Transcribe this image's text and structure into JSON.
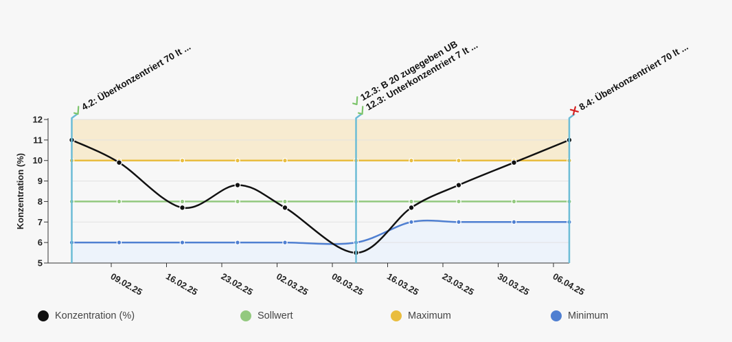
{
  "chart_data": {
    "type": "line",
    "ylabel": "Konzentration (%)",
    "xlabel": "",
    "ylim": [
      5,
      12
    ],
    "yticks": [
      "5",
      "6",
      "7",
      "8",
      "9",
      "10",
      "11",
      "12"
    ],
    "x_start": "2025-02-01",
    "x_end": "2025-04-06",
    "xticks": [
      {
        "date": "2025-02-09",
        "label": "09.02.25"
      },
      {
        "date": "2025-02-16",
        "label": "16.02.25"
      },
      {
        "date": "2025-02-23",
        "label": "23.02.25"
      },
      {
        "date": "2025-03-02",
        "label": "02.03.25"
      },
      {
        "date": "2025-03-09",
        "label": "09.03.25"
      },
      {
        "date": "2025-03-16",
        "label": "16.03.25"
      },
      {
        "date": "2025-03-23",
        "label": "23.03.25"
      },
      {
        "date": "2025-03-30",
        "label": "30.03.25"
      },
      {
        "date": "2025-04-06",
        "label": "06.04.25"
      }
    ],
    "series": [
      {
        "name": "Konzentration (%)",
        "color": "#111111",
        "points": [
          {
            "x": "2025-02-04",
            "y": 11
          },
          {
            "x": "2025-02-10",
            "y": 9.9
          },
          {
            "x": "2025-02-18",
            "y": 7.7
          },
          {
            "x": "2025-02-25",
            "y": 8.8
          },
          {
            "x": "2025-03-03",
            "y": 7.7
          },
          {
            "x": "2025-03-12",
            "y": 5.5
          },
          {
            "x": "2025-03-19",
            "y": 7.7
          },
          {
            "x": "2025-03-25",
            "y": 8.8
          },
          {
            "x": "2025-04-01",
            "y": 9.9
          },
          {
            "x": "2025-04-08",
            "y": 11
          }
        ]
      },
      {
        "name": "Sollwert",
        "color": "#93c97f",
        "points": [
          {
            "x": "2025-02-04",
            "y": 8
          },
          {
            "x": "2025-02-10",
            "y": 8
          },
          {
            "x": "2025-02-18",
            "y": 8
          },
          {
            "x": "2025-02-25",
            "y": 8
          },
          {
            "x": "2025-03-03",
            "y": 8
          },
          {
            "x": "2025-03-12",
            "y": 8
          },
          {
            "x": "2025-03-19",
            "y": 8
          },
          {
            "x": "2025-03-25",
            "y": 8
          },
          {
            "x": "2025-04-01",
            "y": 8
          },
          {
            "x": "2025-04-08",
            "y": 8
          }
        ]
      },
      {
        "name": "Maximum",
        "color": "#e9bd3f",
        "points": [
          {
            "x": "2025-02-04",
            "y": 10
          },
          {
            "x": "2025-02-10",
            "y": 10
          },
          {
            "x": "2025-02-18",
            "y": 10
          },
          {
            "x": "2025-02-25",
            "y": 10
          },
          {
            "x": "2025-03-03",
            "y": 10
          },
          {
            "x": "2025-03-12",
            "y": 10
          },
          {
            "x": "2025-03-19",
            "y": 10
          },
          {
            "x": "2025-03-25",
            "y": 10
          },
          {
            "x": "2025-04-01",
            "y": 10
          },
          {
            "x": "2025-04-08",
            "y": 10
          }
        ]
      },
      {
        "name": "Minimum",
        "color": "#4f7fd1",
        "points": [
          {
            "x": "2025-02-04",
            "y": 6
          },
          {
            "x": "2025-02-10",
            "y": 6
          },
          {
            "x": "2025-02-18",
            "y": 6
          },
          {
            "x": "2025-02-25",
            "y": 6
          },
          {
            "x": "2025-03-03",
            "y": 6
          },
          {
            "x": "2025-03-12",
            "y": 6
          },
          {
            "x": "2025-03-19",
            "y": 7
          },
          {
            "x": "2025-03-25",
            "y": 7
          },
          {
            "x": "2025-04-01",
            "y": 7
          },
          {
            "x": "2025-04-08",
            "y": 7
          }
        ]
      }
    ],
    "bands": [
      {
        "name": "above-maximum",
        "from": 10,
        "to": 12,
        "color": "#f7ebd0"
      },
      {
        "name": "below-minimum",
        "from": 5,
        "to": "Minimum",
        "color": "#edf3fb"
      }
    ],
    "annotations": [
      {
        "x": "2025-02-04",
        "status": "ok",
        "lines": [
          "4.2: Überkonzentriert 70 lt ..."
        ]
      },
      {
        "x": "2025-03-12",
        "status": "ok",
        "lines": [
          "12.3: Unterkonzentriert 7 lt ...",
          "12.3: B 20 zugegeben UB"
        ]
      },
      {
        "x": "2025-04-08",
        "status": "error",
        "lines": [
          "8.4: Überkonzentriert 70 lt ..."
        ]
      }
    ],
    "annotation_line_color": "#6bbcd6",
    "ok_color": "#7cc46b",
    "error_color": "#d62020",
    "grid": true,
    "legend_position": "bottom"
  }
}
